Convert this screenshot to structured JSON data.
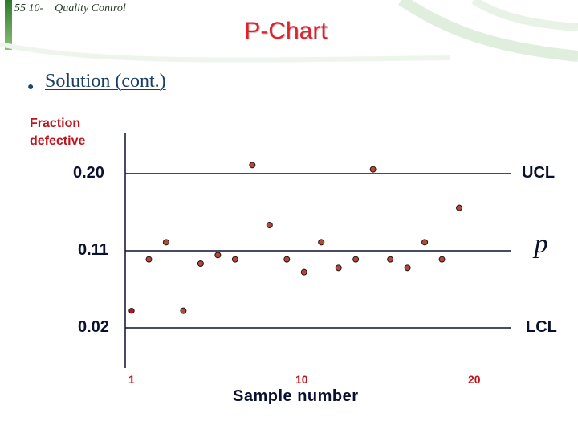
{
  "header": {
    "course_ref": "55 10-",
    "topic": "Quality Control"
  },
  "title": "P-Chart",
  "bullet_text": "Solution (cont.)",
  "colors": {
    "title": "#e0202a",
    "axis_label": "#c0141c",
    "point_fill": "#b04a3a",
    "lines": "#0a1030",
    "accent_green": "#4a9a3a"
  },
  "chart_data": {
    "type": "scatter",
    "ylabel": "Fraction defective",
    "xlabel": "Sample number",
    "y_ticks": [
      {
        "value": 0.2,
        "label": "0.20"
      },
      {
        "value": 0.11,
        "label": "0.11"
      },
      {
        "value": 0.02,
        "label": "0.02"
      }
    ],
    "x_ticks": [
      {
        "value": 1,
        "label": "1"
      },
      {
        "value": 10,
        "label": "10"
      },
      {
        "value": 20,
        "label": "20"
      }
    ],
    "lines": [
      {
        "label": "UCL",
        "value": 0.2
      },
      {
        "label": "",
        "value": 0.11
      },
      {
        "label": "LCL",
        "value": 0.02
      }
    ],
    "center_line_symbol": "p",
    "xlim": [
      1,
      20
    ],
    "ylim": [
      -0.04,
      0.25
    ],
    "points": [
      {
        "x": 1,
        "y": 0.04
      },
      {
        "x": 2,
        "y": 0.1
      },
      {
        "x": 3,
        "y": 0.12
      },
      {
        "x": 4,
        "y": 0.04
      },
      {
        "x": 5,
        "y": 0.095
      },
      {
        "x": 6,
        "y": 0.105
      },
      {
        "x": 7,
        "y": 0.1
      },
      {
        "x": 8,
        "y": 0.21
      },
      {
        "x": 9,
        "y": 0.14
      },
      {
        "x": 10,
        "y": 0.1
      },
      {
        "x": 11,
        "y": 0.085
      },
      {
        "x": 12,
        "y": 0.12
      },
      {
        "x": 13,
        "y": 0.09
      },
      {
        "x": 14,
        "y": 0.1
      },
      {
        "x": 15,
        "y": 0.205
      },
      {
        "x": 16,
        "y": 0.1
      },
      {
        "x": 17,
        "y": 0.09
      },
      {
        "x": 18,
        "y": 0.12
      },
      {
        "x": 19,
        "y": 0.1
      },
      {
        "x": 20,
        "y": 0.16
      }
    ]
  }
}
